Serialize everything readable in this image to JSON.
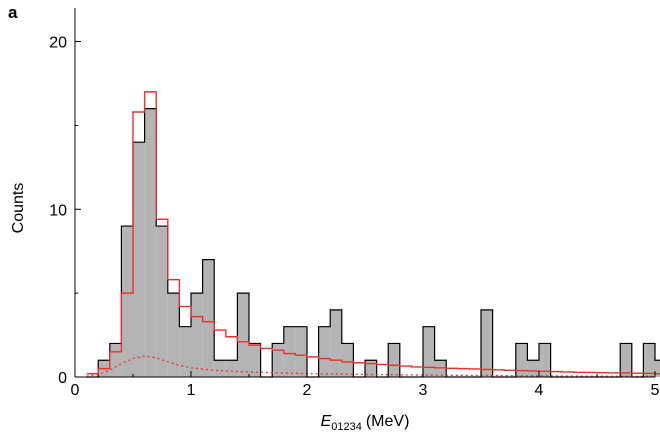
{
  "panel_label": "a",
  "chart_data": {
    "type": "bar",
    "xlabel": {
      "symbol": "E",
      "subscript": "01234",
      "unit": "(MeV)"
    },
    "ylabel": "Counts",
    "xlim": [
      0,
      5
    ],
    "ylim": [
      0,
      22
    ],
    "x_ticks": [
      0,
      1,
      2,
      3,
      4,
      5
    ],
    "y_ticks": [
      0,
      10,
      20
    ],
    "grid": false,
    "legend": "none",
    "bin_width": 0.1,
    "bin_start": 0.1,
    "series": [
      {
        "kind": "filled-histogram",
        "color": "#b4b4b4",
        "edge_color": "#000000",
        "values": [
          0,
          1,
          2,
          9,
          14,
          16,
          9,
          5,
          3,
          5,
          7,
          1,
          1,
          5,
          2,
          0,
          2,
          3,
          3,
          0,
          3,
          4,
          2,
          0,
          1,
          0,
          2,
          0,
          0,
          3,
          1,
          0,
          0,
          0,
          4,
          0,
          0,
          2,
          1,
          2,
          0,
          0,
          0,
          0,
          0,
          0,
          2,
          0,
          2,
          1
        ]
      },
      {
        "kind": "model-step",
        "color": "#e8322f",
        "values": [
          0.2,
          0.5,
          1.5,
          5.0,
          15.8,
          17.0,
          9.4,
          5.8,
          4.2,
          3.6,
          3.3,
          2.8,
          2.4,
          2.1,
          1.9,
          1.7,
          1.6,
          1.4,
          1.3,
          1.2,
          1.1,
          1.0,
          0.9,
          0.85,
          0.8,
          0.75,
          0.7,
          0.65,
          0.6,
          0.58,
          0.55,
          0.52,
          0.5,
          0.48,
          0.45,
          0.43,
          0.4,
          0.38,
          0.36,
          0.34,
          0.32,
          0.3,
          0.28,
          0.27,
          0.26,
          0.25,
          0.24,
          0.23,
          0.22,
          0.2
        ]
      },
      {
        "kind": "model-dotted",
        "color": "#e8322f",
        "x": [
          0.1,
          0.2,
          0.3,
          0.4,
          0.5,
          0.6,
          0.7,
          0.8,
          0.9,
          1.0,
          1.2,
          1.5,
          2.0,
          2.5,
          3.0,
          3.5,
          4.0,
          4.5,
          5.0
        ],
        "y": [
          0.05,
          0.15,
          0.4,
          0.8,
          1.1,
          1.25,
          1.15,
          0.9,
          0.7,
          0.55,
          0.4,
          0.3,
          0.2,
          0.15,
          0.12,
          0.09,
          0.07,
          0.05,
          0.04
        ]
      }
    ]
  }
}
